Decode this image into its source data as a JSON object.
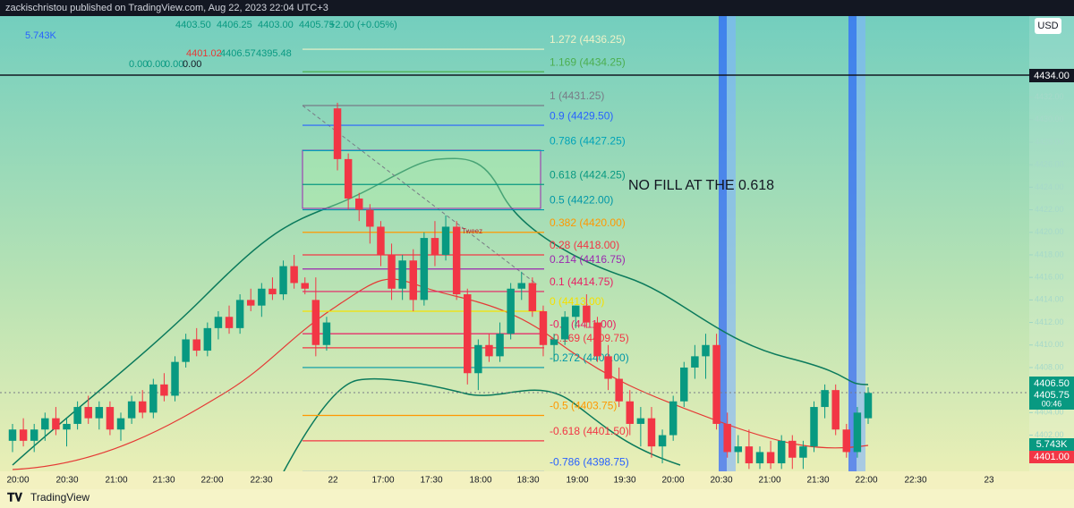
{
  "header": {
    "publisher": "zackischristou published on TradingView.com, Aug 22, 2023 22:04 UTC+3"
  },
  "legend": {
    "ohlc": [
      "4403.50",
      "4406.25",
      "4403.00",
      "4405.75",
      "+2.00 (+0.05%)"
    ],
    "volume": "5.743K",
    "indicator": [
      "4401.02",
      "4406.57",
      "4395.48"
    ],
    "indicator2": [
      "0.00",
      "0.00",
      "0.00",
      "0.00"
    ]
  },
  "currency": "USD",
  "annotation": "NO FILL AT THE 0.618",
  "pattern_label": "Tweez",
  "chart": {
    "ylim": [
      4398.71,
      4439.19
    ],
    "price_ticks": [
      {
        "value": 4402,
        "label": "4402.00"
      },
      {
        "value": 4404,
        "label": "4404.00"
      },
      {
        "value": 4406,
        "label": "4406.00"
      },
      {
        "value": 4408,
        "label": "4408.00"
      },
      {
        "value": 4410,
        "label": "4410.00"
      },
      {
        "value": 4412,
        "label": "4412.00"
      },
      {
        "value": 4414,
        "label": "4414.00"
      },
      {
        "value": 4416,
        "label": "4416.00"
      },
      {
        "value": 4418,
        "label": "4418.00"
      },
      {
        "value": 4420,
        "label": "4420.00"
      },
      {
        "value": 4422,
        "label": "4422.00"
      },
      {
        "value": 4424,
        "label": "4424.00"
      },
      {
        "value": 4426,
        "label": "4426.00"
      },
      {
        "value": 4428,
        "label": "4428.00"
      },
      {
        "value": 4430,
        "label": "4430.00"
      },
      {
        "value": 4432,
        "label": "4432.00"
      }
    ],
    "price_labels": [
      "4434.00",
      "4406.50",
      "4405.75",
      "00:46",
      "5.743K",
      "4401.00"
    ],
    "time_labels": [
      "20:00",
      "20:30",
      "21:00",
      "21:30",
      "22:00",
      "22:30",
      "22",
      "17:00",
      "17:30",
      "18:00",
      "18:30",
      "19:00",
      "19:30",
      "20:00",
      "20:30",
      "21:00",
      "21:30",
      "22:00",
      "22:30",
      "23"
    ],
    "fib_levels": [
      {
        "label": "1.272 (4436.25)",
        "price": 4436.25,
        "color": "#eef2c8"
      },
      {
        "label": "1.169 (4434.25)",
        "price": 4434.25,
        "color": "#4caf50"
      },
      {
        "label": "1 (4431.25)",
        "price": 4431.25,
        "color": "#787b86"
      },
      {
        "label": "0.9 (4429.50)",
        "price": 4429.5,
        "color": "#2962ff"
      },
      {
        "label": "0.786 (4427.25)",
        "price": 4427.25,
        "color": "#00a3b8"
      },
      {
        "label": "0.618 (4424.25)",
        "price": 4424.25,
        "color": "#089981"
      },
      {
        "label": "0.5 (4422.00)",
        "price": 4422,
        "color": "#0097a7"
      },
      {
        "label": "0.382 (4420.00)",
        "price": 4420,
        "color": "#ff9800"
      },
      {
        "label": "0.28 (4418.00)",
        "price": 4418,
        "color": "#f23645"
      },
      {
        "label": "0.214 (4416.75)",
        "price": 4416.75,
        "color": "#9c27b0"
      },
      {
        "label": "0.1 (4414.75)",
        "price": 4414.75,
        "color": "#e91e63"
      },
      {
        "label": "0 (4413.00)",
        "price": 4413,
        "color": "#f5e000"
      },
      {
        "label": "-0.1 (4411.00)",
        "price": 4411,
        "color": "#e91e63"
      },
      {
        "label": "-0.169 (4409.75)",
        "price": 4409.75,
        "color": "#f23645"
      },
      {
        "label": "-0.272 (4408.00)",
        "price": 4408,
        "color": "#0097a7"
      },
      {
        "label": "-0.5 (4403.75)",
        "price": 4403.75,
        "color": "#ff9800"
      },
      {
        "label": "-0.618 (4401.50)",
        "price": 4401.5,
        "color": "#f23645"
      },
      {
        "label": "-0.786 (4398.75)",
        "price": 4398.75,
        "color": "#2962ff"
      }
    ],
    "candles": [
      [
        4401.5,
        4403,
        4400.5,
        4402.5
      ],
      [
        4402.5,
        4403.5,
        4401,
        4401.5
      ],
      [
        4401.5,
        4403,
        4400.5,
        4402.5
      ],
      [
        4402.5,
        4404,
        4401.5,
        4403.5
      ],
      [
        4403.5,
        4404.5,
        4402,
        4402.5
      ],
      [
        4402.5,
        4403.5,
        4401,
        4403
      ],
      [
        4403,
        4405,
        4402.5,
        4404.5
      ],
      [
        4404.5,
        4405.5,
        4403,
        4403.5
      ],
      [
        4403.5,
        4405,
        4402.5,
        4404.5
      ],
      [
        4404.5,
        4405,
        4402,
        4402.5
      ],
      [
        4402.5,
        4404,
        4401.5,
        4403.5
      ],
      [
        4403.5,
        4405.5,
        4403,
        4405
      ],
      [
        4405,
        4406,
        4403.5,
        4404
      ],
      [
        4404,
        4407,
        4403.5,
        4406.5
      ],
      [
        4406.5,
        4407.5,
        4405,
        4405.5
      ],
      [
        4405.5,
        4409,
        4405,
        4408.5
      ],
      [
        4408.5,
        4411,
        4408,
        4410.5
      ],
      [
        4410.5,
        4411.5,
        4409,
        4409.5
      ],
      [
        4409.5,
        4412,
        4409,
        4411.5
      ],
      [
        4411.5,
        4413,
        4410.5,
        4412.5
      ],
      [
        4412.5,
        4413.5,
        4411,
        4411.5
      ],
      [
        4411.5,
        4414.5,
        4411,
        4414
      ],
      [
        4414,
        4415,
        4413,
        4413.5
      ],
      [
        4413.5,
        4415.5,
        4412.5,
        4415
      ],
      [
        4415,
        4416,
        4414,
        4414.5
      ],
      [
        4414.5,
        4417.5,
        4414,
        4417
      ],
      [
        4417,
        4418,
        4415,
        4415.5
      ],
      [
        4415.5,
        4416,
        4414.5,
        4415
      ],
      [
        4414,
        4416,
        4409,
        4410
      ],
      [
        4410,
        4412.5,
        4409.5,
        4412
      ],
      [
        4431,
        4431.5,
        4425.5,
        4426.5
      ],
      [
        4426.5,
        4427,
        4422,
        4423
      ],
      [
        4423,
        4423.5,
        4421,
        4422
      ],
      [
        4422,
        4422.5,
        4419,
        4420.5
      ],
      [
        4420.5,
        4421,
        4417,
        4418
      ],
      [
        4418,
        4419,
        4414,
        4415
      ],
      [
        4415,
        4418,
        4414,
        4417.5
      ],
      [
        4417.5,
        4418.5,
        4413,
        4414
      ],
      [
        4414,
        4420,
        4413.5,
        4419.5
      ],
      [
        4419.5,
        4421,
        4417,
        4418
      ],
      [
        4418,
        4421.5,
        4417.5,
        4420.5
      ],
      [
        4420.5,
        4421,
        4414,
        4414.5
      ],
      [
        4414.5,
        4415,
        4406.5,
        4407.5
      ],
      [
        4407.5,
        4410.5,
        4406,
        4410
      ],
      [
        4410,
        4411,
        4408.5,
        4409
      ],
      [
        4409,
        4412,
        4408.5,
        4411
      ],
      [
        4411,
        4415.5,
        4410.5,
        4415
      ],
      [
        4415,
        4416.5,
        4414,
        4415.5
      ],
      [
        4415.5,
        4416,
        4412.5,
        4413
      ],
      [
        4413,
        4413.5,
        4409,
        4410
      ],
      [
        4410,
        4411,
        4408.5,
        4410.5
      ],
      [
        4410.5,
        4413,
        4410,
        4412.5
      ],
      [
        4412.5,
        4413.5,
        4411.5,
        4413.5
      ],
      [
        4413.5,
        4414.5,
        4411.5,
        4412
      ],
      [
        4412,
        4412.5,
        4408.5,
        4409
      ],
      [
        4409,
        4410,
        4406,
        4407
      ],
      [
        4407,
        4408,
        4404.5,
        4405
      ],
      [
        4405,
        4406,
        4402,
        4403
      ],
      [
        4403,
        4404.5,
        4401,
        4403.5
      ],
      [
        4403.5,
        4404.5,
        4400,
        4401
      ],
      [
        4401,
        4402.5,
        4399.5,
        4402
      ],
      [
        4402,
        4405.5,
        4401.5,
        4405
      ],
      [
        4405,
        4408.5,
        4404.5,
        4408
      ],
      [
        4408,
        4410,
        4407,
        4409
      ],
      [
        4409,
        4411,
        4407,
        4410
      ],
      [
        4410,
        4411,
        4402.5,
        4403
      ],
      [
        4403,
        4404,
        4400,
        4400.5
      ],
      [
        4400.5,
        4402,
        4399.5,
        4401
      ],
      [
        4401,
        4402.5,
        4399,
        4399.5
      ],
      [
        4399.5,
        4401,
        4399,
        4400.5
      ],
      [
        4400.5,
        4401.5,
        4399,
        4399.5
      ],
      [
        4399.5,
        4402,
        4399,
        4401.5
      ],
      [
        4401.5,
        4402,
        4399,
        4400
      ],
      [
        4400,
        4401.5,
        4399,
        4401
      ],
      [
        4401,
        4405,
        4400.5,
        4404.5
      ],
      [
        4404.5,
        4406.5,
        4403.5,
        4406
      ],
      [
        4406,
        4406.5,
        4402,
        4402.5
      ],
      [
        4402.5,
        4403,
        4400,
        4400.5
      ],
      [
        4400.5,
        4404.5,
        4400,
        4404
      ],
      [
        4403.5,
        4406.25,
        4403,
        4405.75
      ]
    ]
  },
  "footer": "TradingView"
}
